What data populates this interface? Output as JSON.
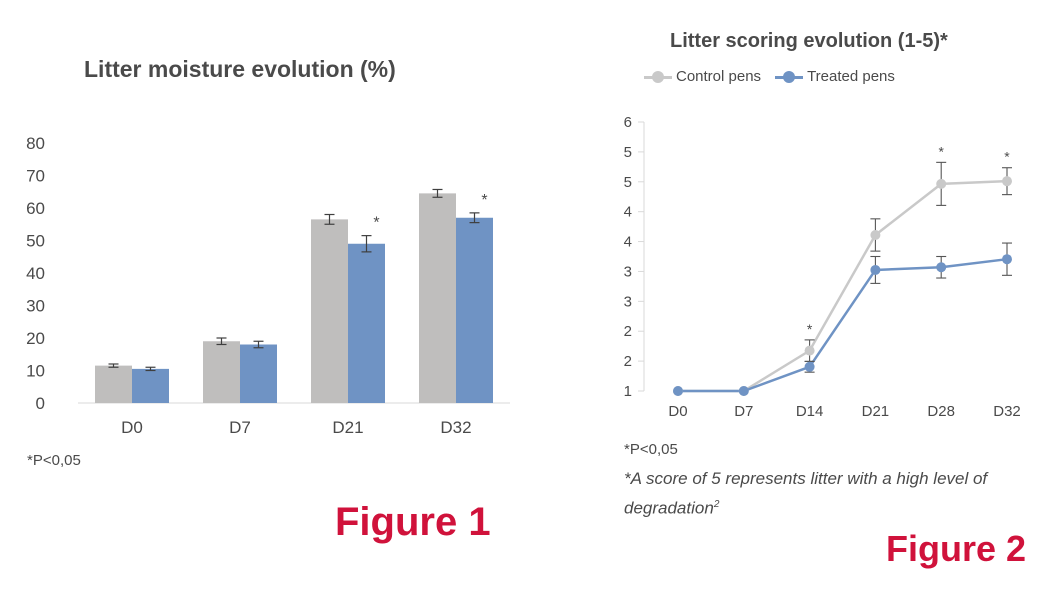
{
  "figure1": {
    "title": "Litter moisture evolution (%)",
    "footnote": "*P<0,05",
    "figure_label": "Figure 1"
  },
  "figure2": {
    "title": "Litter scoring evolution (1-5)*",
    "footnote": "*P<0,05",
    "footnote2": "*A score of 5 represents litter with a high level of degradation",
    "footnote2_sup": "2",
    "figure_label": "Figure 2",
    "legend": {
      "control_label": "Control pens",
      "treated_label": "Treated pens"
    }
  },
  "colors": {
    "control": "#bfbebd",
    "treated": "#6f93c4",
    "control_line": "#c9c9c9",
    "accent_red": "#d0123b"
  },
  "chart_data": [
    {
      "type": "bar",
      "title": "Litter moisture evolution (%)",
      "categories": [
        "D0",
        "D7",
        "D21",
        "D32"
      ],
      "ylim": [
        0,
        80
      ],
      "yticks": [
        0,
        10,
        20,
        30,
        40,
        50,
        60,
        70,
        80
      ],
      "grid": false,
      "series": [
        {
          "values": [
            11.5,
            19,
            56.5,
            64.5
          ],
          "errors": [
            0.5,
            1.0,
            1.5,
            1.2
          ],
          "significance": [
            "",
            "",
            "",
            ""
          ]
        },
        {
          "values": [
            10.5,
            18,
            49,
            57
          ],
          "errors": [
            0.5,
            1.0,
            2.5,
            1.5
          ],
          "significance": [
            "",
            "",
            "*",
            "*"
          ]
        }
      ]
    },
    {
      "type": "line",
      "title": "Litter scoring evolution (1-5)*",
      "categories": [
        "D0",
        "D7",
        "D14",
        "D21",
        "D28",
        "D32"
      ],
      "ylim": [
        1,
        6
      ],
      "ytick_labels": [
        "1",
        "2",
        "2",
        "3",
        "3",
        "4",
        "4",
        "5",
        "5",
        "6"
      ],
      "grid": false,
      "legend_position": "top",
      "series": [
        {
          "name": "Control pens",
          "values": [
            1,
            1,
            1.75,
            3.9,
            4.85,
            4.9
          ],
          "errors": [
            0,
            0,
            0.2,
            0.3,
            0.4,
            0.25
          ],
          "significance": [
            "",
            "",
            "*",
            "",
            "*",
            "*"
          ]
        },
        {
          "name": "Treated pens",
          "values": [
            1,
            1,
            1.45,
            3.25,
            3.3,
            3.45
          ],
          "errors": [
            0,
            0,
            0.1,
            0.25,
            0.2,
            0.3
          ],
          "significance": [
            "",
            "",
            "",
            "",
            "",
            ""
          ]
        }
      ]
    }
  ]
}
